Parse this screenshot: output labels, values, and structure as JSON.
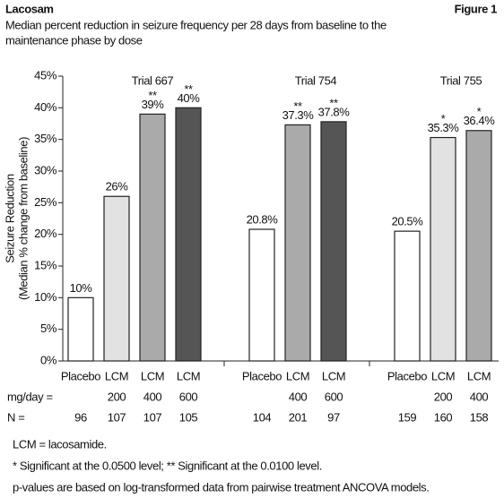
{
  "header": {
    "left": "Lacosam",
    "right": "Figure 1"
  },
  "chart_data": {
    "type": "bar",
    "title": [
      "Median percent reduction in seizure frequency per 28 days from baseline to the",
      "maintenance phase by dose"
    ],
    "y_label": [
      "Seizure Reduction",
      "(Median % change from baseline)"
    ],
    "ylim": [
      0,
      45
    ],
    "yticks": [
      {
        "value": 0,
        "label": "0%"
      },
      {
        "value": 5,
        "label": "5%"
      },
      {
        "value": 10,
        "label": "10%"
      },
      {
        "value": 15,
        "label": "15%"
      },
      {
        "value": 20,
        "label": "20%"
      },
      {
        "value": 25,
        "label": "25%"
      },
      {
        "value": 30,
        "label": "30%"
      },
      {
        "value": 35,
        "label": "35%"
      },
      {
        "value": 40,
        "label": "40%"
      },
      {
        "value": 45,
        "label": "45%"
      }
    ],
    "row_labels": [
      "mg/day =",
      "N ="
    ],
    "groups": [
      {
        "name": "Trial 667",
        "categories": [
          "Placebo",
          "LCM",
          "LCM",
          "LCM"
        ],
        "values": [
          10,
          26,
          39,
          40
        ],
        "value_labels": [
          "10%",
          "26%",
          "39%",
          "40%"
        ],
        "colors": [
          "#ffffff",
          "#e2e2e2",
          "#aaaaaa",
          "#555555"
        ],
        "significance": [
          null,
          null,
          "**",
          "**"
        ],
        "doses": [
          null,
          200,
          400,
          600
        ],
        "n": [
          96,
          107,
          107,
          105
        ]
      },
      {
        "name": "Trial 754",
        "categories": [
          "Placebo",
          "LCM",
          "LCM"
        ],
        "values": [
          20.8,
          37.3,
          37.8
        ],
        "value_labels": [
          "20.8%",
          "37.3%",
          "37.8%"
        ],
        "colors": [
          "#ffffff",
          "#aaaaaa",
          "#555555"
        ],
        "significance": [
          null,
          "**",
          "**"
        ],
        "doses": [
          null,
          400,
          600
        ],
        "n": [
          104,
          201,
          97
        ]
      },
      {
        "name": "Trial 755",
        "categories": [
          "Placebo",
          "LCM",
          "LCM"
        ],
        "values": [
          20.5,
          35.3,
          36.4
        ],
        "value_labels": [
          "20.5%",
          "35.3%",
          "36.4%"
        ],
        "colors": [
          "#ffffff",
          "#e2e2e2",
          "#aaaaaa"
        ],
        "significance": [
          null,
          "*",
          "*"
        ],
        "doses": [
          null,
          200,
          400
        ],
        "n": [
          159,
          160,
          158
        ]
      }
    ]
  },
  "footnotes": [
    "LCM = lacosamide.",
    "* Significant at the 0.0500 level;  ** Significant at the 0.0100 level.",
    "p-values are based on log-transformed data from pairwise treatment ANCOVA models."
  ]
}
